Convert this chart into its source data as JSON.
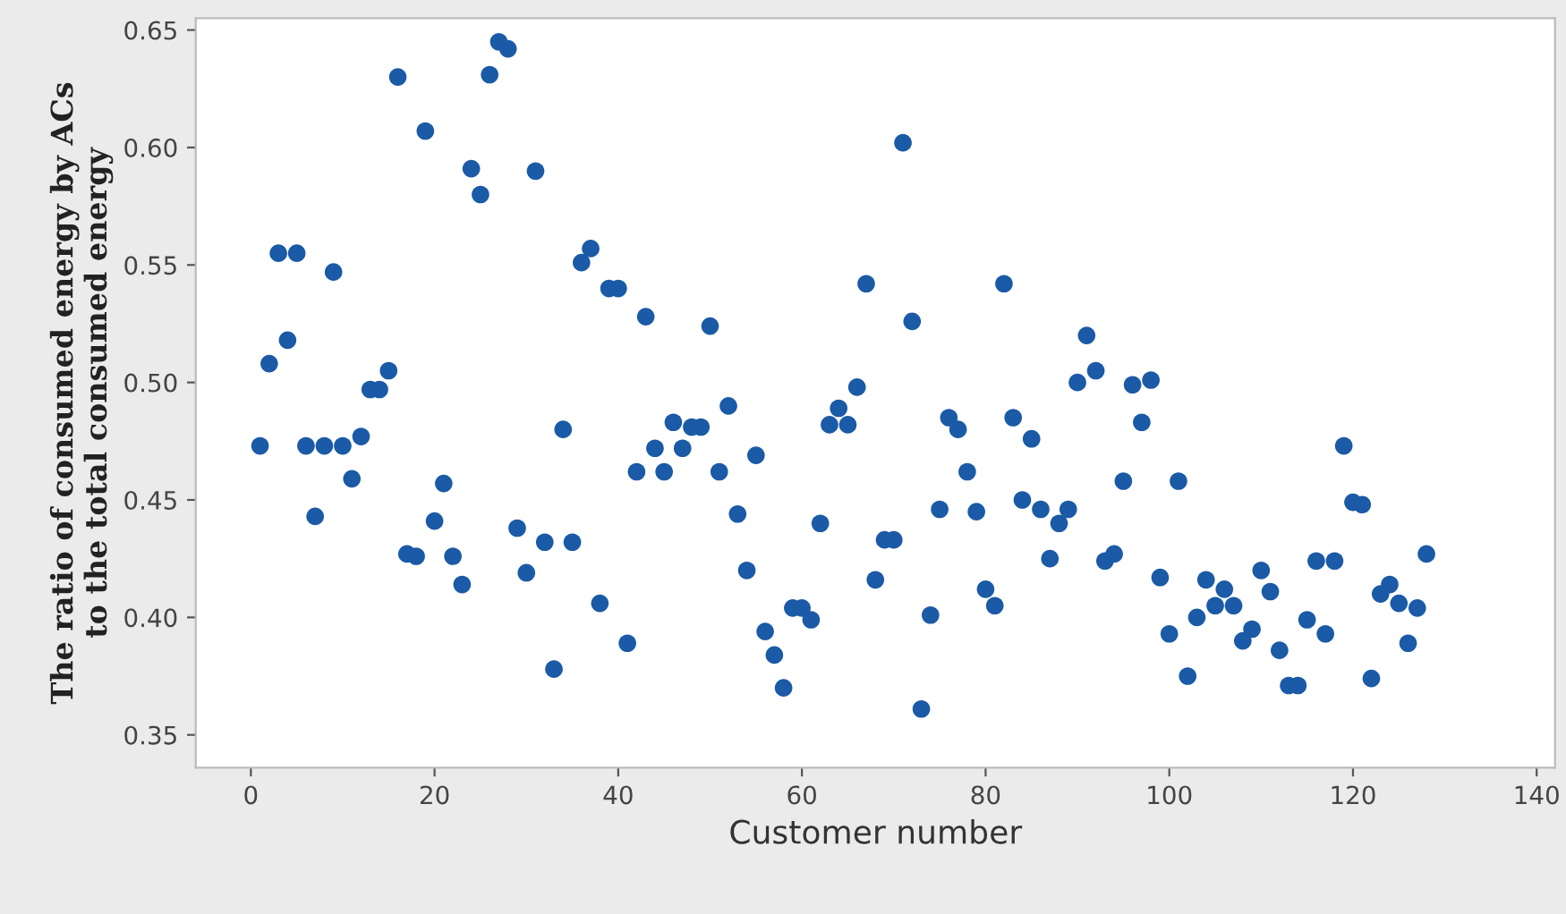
{
  "chart_data": {
    "type": "scatter",
    "xlabel": "Customer number",
    "ylabel": "The ratio of consumed energy by ACs\nto the total consumed energy",
    "x": [
      1,
      2,
      3,
      4,
      5,
      6,
      7,
      8,
      9,
      10,
      11,
      12,
      13,
      14,
      15,
      16,
      17,
      18,
      19,
      20,
      21,
      22,
      23,
      24,
      25,
      26,
      27,
      28,
      29,
      30,
      31,
      32,
      33,
      34,
      35,
      36,
      37,
      38,
      39,
      40,
      41,
      42,
      43,
      44,
      45,
      46,
      47,
      48,
      49,
      50,
      51,
      52,
      53,
      54,
      55,
      56,
      57,
      58,
      59,
      60,
      61,
      62,
      63,
      64,
      65,
      66,
      67,
      68,
      69,
      70,
      71,
      72,
      73,
      74,
      75,
      76,
      77,
      78,
      79,
      80,
      81,
      82,
      83,
      84,
      85,
      86,
      87,
      88,
      89,
      90,
      91,
      92,
      93,
      94,
      95,
      96,
      97,
      98,
      99,
      100,
      101,
      102,
      103,
      104,
      105,
      106,
      107,
      108,
      109,
      110,
      111,
      112,
      113,
      114,
      115,
      116,
      117,
      118,
      119,
      120,
      121,
      122,
      123,
      124,
      125,
      126,
      127,
      128
    ],
    "series": [
      {
        "color": "#1a5aa6",
        "values": [
          0.473,
          0.508,
          0.555,
          0.518,
          0.555,
          0.473,
          0.443,
          0.473,
          0.547,
          0.473,
          0.459,
          0.477,
          0.497,
          0.497,
          0.505,
          0.63,
          0.427,
          0.426,
          0.607,
          0.441,
          0.457,
          0.426,
          0.414,
          0.591,
          0.58,
          0.631,
          0.645,
          0.642,
          0.438,
          0.419,
          0.59,
          0.432,
          0.378,
          0.48,
          0.432,
          0.551,
          0.557,
          0.406,
          0.54,
          0.54,
          0.389,
          0.462,
          0.528,
          0.472,
          0.462,
          0.483,
          0.472,
          0.481,
          0.481,
          0.524,
          0.462,
          0.49,
          0.444,
          0.42,
          0.469,
          0.394,
          0.384,
          0.37,
          0.404,
          0.404,
          0.399,
          0.44,
          0.482,
          0.489,
          0.482,
          0.498,
          0.542,
          0.416,
          0.433,
          0.433,
          0.602,
          0.526,
          0.361,
          0.401,
          0.446,
          0.485,
          0.48,
          0.462,
          0.445,
          0.412,
          0.405,
          0.542,
          0.485,
          0.45,
          0.476,
          0.446,
          0.425,
          0.44,
          0.446,
          0.5,
          0.52,
          0.505,
          0.424,
          0.427,
          0.458,
          0.499,
          0.483,
          0.501,
          0.417,
          0.393,
          0.458,
          0.375,
          0.4,
          0.416,
          0.405,
          0.412,
          0.405,
          0.39,
          0.395,
          0.42,
          0.411,
          0.386,
          0.371,
          0.371,
          0.399,
          0.424,
          0.393,
          0.424,
          0.473,
          0.449,
          0.448,
          0.374,
          0.41,
          0.414,
          0.406,
          0.389,
          0.404,
          0.427
        ]
      }
    ],
    "xlim": [
      -6,
      142
    ],
    "ylim": [
      0.336,
      0.655
    ],
    "xticks": [
      0,
      20,
      40,
      60,
      80,
      100,
      120,
      140
    ],
    "yticks": [
      {
        "value": 0.35,
        "label": "0.35"
      },
      {
        "value": 0.4,
        "label": "0.40"
      },
      {
        "value": 0.45,
        "label": "0.45"
      },
      {
        "value": 0.5,
        "label": "0.50"
      },
      {
        "value": 0.55,
        "label": "0.55"
      },
      {
        "value": 0.6,
        "label": "0.60"
      },
      {
        "value": 0.65,
        "label": "0.65"
      }
    ],
    "marker": "circle",
    "grid": false
  }
}
